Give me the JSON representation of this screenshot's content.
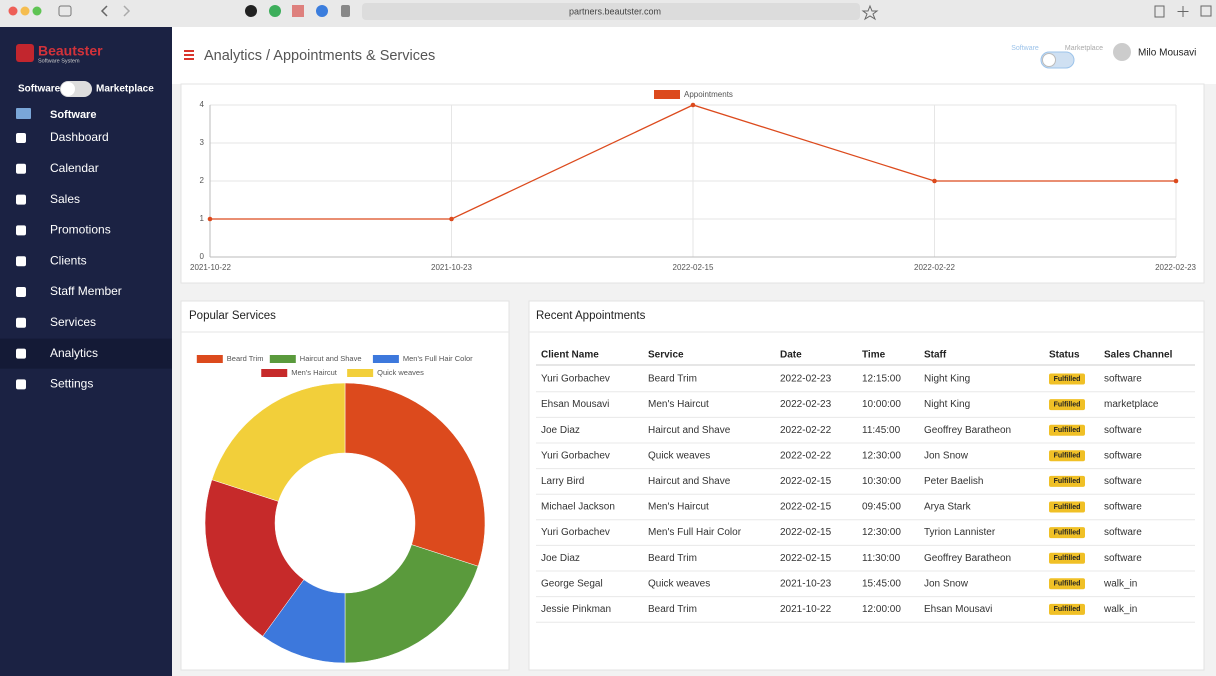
{
  "browser": {
    "url": "partners.beautster.com"
  },
  "sidebar": {
    "brand": "Beautster",
    "brand_sub": "Software System",
    "toggle_left": "Software",
    "toggle_right": "Marketplace",
    "section": "Software",
    "items": [
      {
        "label": "Dashboard"
      },
      {
        "label": "Calendar"
      },
      {
        "label": "Sales"
      },
      {
        "label": "Promotions"
      },
      {
        "label": "Clients"
      },
      {
        "label": "Staff Member"
      },
      {
        "label": "Services"
      },
      {
        "label": "Analytics",
        "active": true
      },
      {
        "label": "Settings"
      }
    ]
  },
  "header": {
    "breadcrumb": "Analytics / Appointments & Services",
    "toggle_left": "Software",
    "toggle_right": "Marketplace",
    "user": "Milo Mousavi"
  },
  "chart_data": [
    {
      "type": "line",
      "categories": [
        "2021-10-22",
        "2021-10-23",
        "2022-02-15",
        "2022-02-22",
        "2022-02-23"
      ],
      "series": [
        {
          "name": "Appointments",
          "color": "#dc4a1d",
          "values": [
            1,
            1,
            4,
            2,
            2
          ]
        }
      ],
      "ylim": [
        0,
        4
      ],
      "yticks": [
        0,
        1,
        2,
        3,
        4
      ],
      "grid": true,
      "legend": "top"
    },
    {
      "type": "doughnut",
      "title": "Popular Services",
      "categories": [
        "Beard Trim",
        "Haircut and Shave",
        "Men's Full Hair Color",
        "Men's Haircut",
        "Quick weaves"
      ],
      "values": [
        3,
        2,
        1,
        2,
        2
      ],
      "colors": [
        "#dc4a1d",
        "#5a9a3c",
        "#3d78dc",
        "#c62a2a",
        "#f2cf3a"
      ],
      "legend": "top"
    }
  ],
  "table": {
    "title": "Recent Appointments",
    "columns": [
      "Client Name",
      "Service",
      "Date",
      "Time",
      "Staff",
      "Status",
      "Sales Channel"
    ],
    "rows": [
      [
        "Yuri Gorbachev",
        "Beard Trim",
        "2022-02-23",
        "12:15:00",
        "Night King",
        "Fulfilled",
        "software"
      ],
      [
        "Ehsan Mousavi",
        "Men's Haircut",
        "2022-02-23",
        "10:00:00",
        "Night King",
        "Fulfilled",
        "marketplace"
      ],
      [
        "Joe Diaz",
        "Haircut and Shave",
        "2022-02-22",
        "11:45:00",
        "Geoffrey Baratheon",
        "Fulfilled",
        "software"
      ],
      [
        "Yuri Gorbachev",
        "Quick weaves",
        "2022-02-22",
        "12:30:00",
        "Jon Snow",
        "Fulfilled",
        "software"
      ],
      [
        "Larry Bird",
        "Haircut and Shave",
        "2022-02-15",
        "10:30:00",
        "Peter Baelish",
        "Fulfilled",
        "software"
      ],
      [
        "Michael Jackson",
        "Men's Haircut",
        "2022-02-15",
        "09:45:00",
        "Arya Stark",
        "Fulfilled",
        "software"
      ],
      [
        "Yuri Gorbachev",
        "Men's Full Hair Color",
        "2022-02-15",
        "12:30:00",
        "Tyrion Lannister",
        "Fulfilled",
        "software"
      ],
      [
        "Joe Diaz",
        "Beard Trim",
        "2022-02-15",
        "11:30:00",
        "Geoffrey Baratheon",
        "Fulfilled",
        "software"
      ],
      [
        "George Segal",
        "Quick weaves",
        "2021-10-23",
        "15:45:00",
        "Jon Snow",
        "Fulfilled",
        "walk_in"
      ],
      [
        "Jessie Pinkman",
        "Beard Trim",
        "2021-10-22",
        "12:00:00",
        "Ehsan Mousavi",
        "Fulfilled",
        "walk_in"
      ]
    ]
  }
}
